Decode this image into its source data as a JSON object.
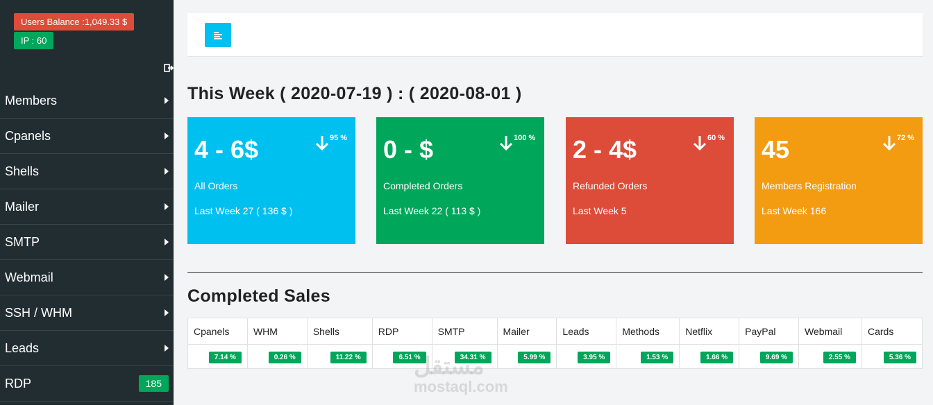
{
  "sidebar": {
    "balance": "Users Balance :1,049.33 $",
    "ip": "IP : 60",
    "items": [
      {
        "label": "Members",
        "arrow": true
      },
      {
        "label": "Cpanels",
        "arrow": true
      },
      {
        "label": "Shells",
        "arrow": true
      },
      {
        "label": "Mailer",
        "arrow": true
      },
      {
        "label": "SMTP",
        "arrow": true
      },
      {
        "label": "Webmail",
        "arrow": true
      },
      {
        "label": "SSH / WHM",
        "arrow": true
      },
      {
        "label": "Leads",
        "arrow": true
      },
      {
        "label": "RDP",
        "badge": "185"
      }
    ]
  },
  "week": {
    "title": "This Week ( 2020-07-19 ) : ( 2020-08-01 )"
  },
  "cards": [
    {
      "value": "4 - 6$",
      "pct": "95 %",
      "label": "All Orders",
      "last": "Last Week 27 ( 136 $ )",
      "color": "#00c0ef"
    },
    {
      "value": "0 - $",
      "pct": "100 %",
      "label": "Completed Orders",
      "last": "Last Week 22 ( 113 $ )",
      "color": "#00a65a"
    },
    {
      "value": "2 - 4$",
      "pct": "60 %",
      "label": "Refunded Orders",
      "last": "Last Week 5",
      "color": "#dd4b39"
    },
    {
      "value": "45",
      "pct": "72 %",
      "label": "Members Registration",
      "last": "Last Week 166",
      "color": "#f39c12"
    }
  ],
  "sales": {
    "title": "Completed Sales",
    "columns": [
      "Cpanels",
      "WHM",
      "Shells",
      "RDP",
      "SMTP",
      "Mailer",
      "Leads",
      "Methods",
      "Netflix",
      "PayPal",
      "Webmail",
      "Cards"
    ],
    "values": [
      "7.14 %",
      "0.26 %",
      "11.22 %",
      "6.51 %",
      "34.31 %",
      "5.99 %",
      "3.95 %",
      "1.53 %",
      "1.66 %",
      "9.69 %",
      "2.55 %",
      "5.36 %"
    ]
  },
  "watermark": {
    "logo": "مستقل",
    "site": "mostaql.com"
  }
}
